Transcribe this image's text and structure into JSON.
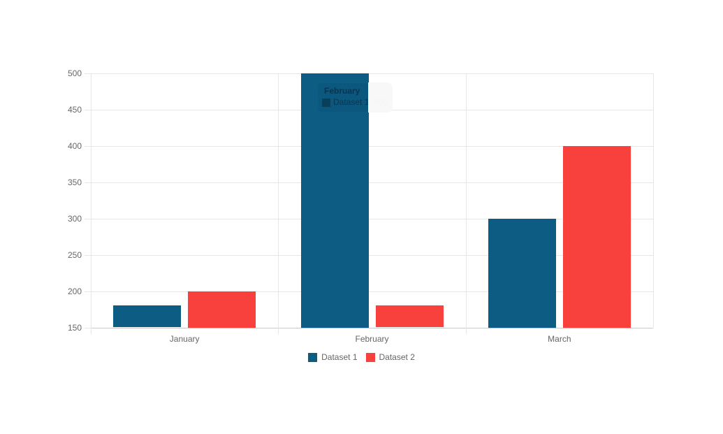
{
  "chart_data": {
    "type": "bar",
    "title": "",
    "categories": [
      "January",
      "February",
      "March"
    ],
    "series": [
      {
        "name": "Dataset 1",
        "color": "#0d5c84",
        "values": [
          180,
          500,
          300
        ]
      },
      {
        "name": "Dataset 2",
        "color": "#f8413d",
        "values": [
          200,
          180,
          400
        ]
      }
    ],
    "xlabel": "",
    "ylabel": "",
    "y_axis": {
      "min": 150,
      "max": 500,
      "step": 50,
      "ticks": [
        150,
        200,
        250,
        300,
        350,
        400,
        450,
        500
      ]
    },
    "grid": true,
    "legend_position": "bottom",
    "colors": {
      "grid": "#e6e6e6",
      "axis_baseline": "#c9c9c9",
      "tick_text": "#666666",
      "background": "#ffffff"
    }
  },
  "tooltip": {
    "title": "February",
    "line": "Dataset 1: 500"
  }
}
